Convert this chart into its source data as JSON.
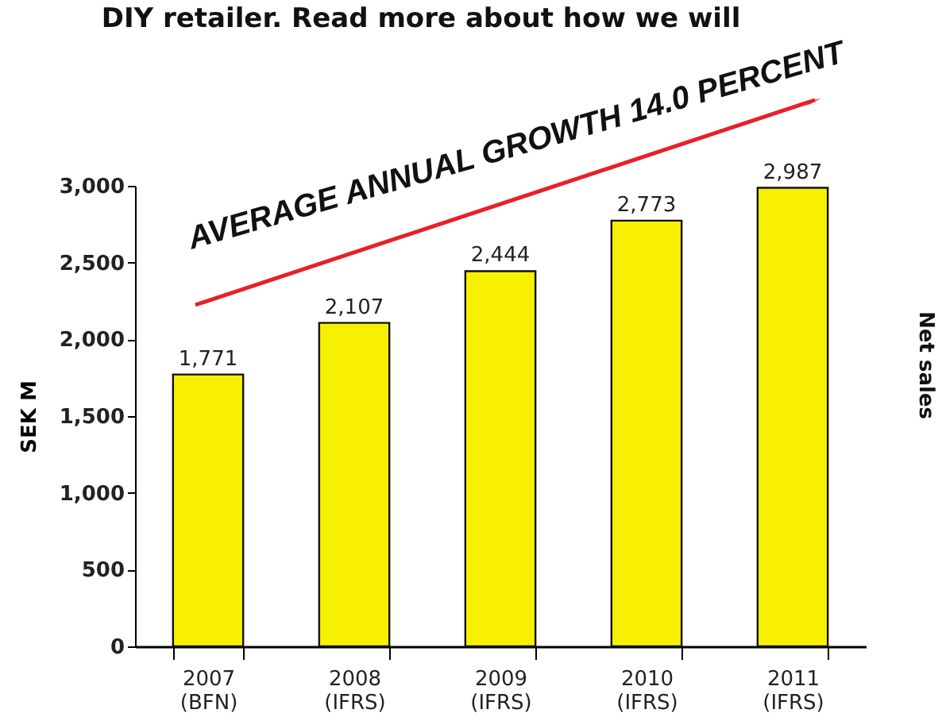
{
  "chart_data": {
    "type": "bar",
    "categories": [
      "2007\n(BFN)",
      "2008\n(IFRS)",
      "2009\n(IFRS)",
      "2010\n(IFRS)",
      "2011\n(IFRS)"
    ],
    "values": [
      1771,
      2107,
      2444,
      2773,
      2987
    ],
    "value_labels": [
      "1,771",
      "2,107",
      "2,444",
      "2,773",
      "2,987"
    ],
    "color": "#f7f000",
    "ylim": [
      0,
      3000
    ],
    "yticks": [
      0,
      {
        "value": 500,
        "label": "500"
      },
      {
        "value": 1000,
        "label": "1,000"
      },
      {
        "value": 1500,
        "label": "1,500"
      },
      {
        "value": 2000,
        "label": "2,000"
      },
      {
        "value": 2500,
        "label": "2,500"
      },
      {
        "value": 3000,
        "label": "3,000"
      }
    ],
    "ylabel": "SEK M",
    "y2label": "Net sales",
    "annotations": [
      "DIY retailer. Read more about how we will",
      "AVERAGE ANNUAL GROWTH 14.0 PERCENT"
    ],
    "grid": false
  }
}
